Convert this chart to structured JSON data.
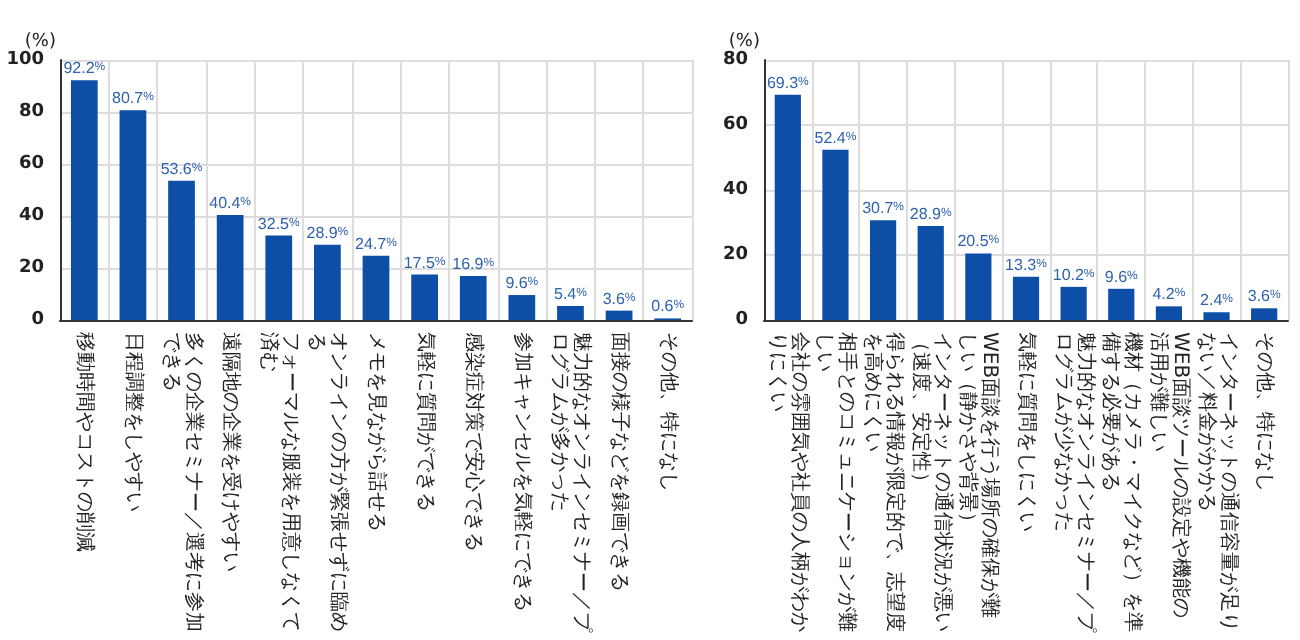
{
  "chart_data": [
    {
      "type": "bar",
      "ylabel": "(%)",
      "categories": [
        "移動時間やコストの削減",
        "日程調整をしやすい",
        "多くの企業セミナー／選考に参加できる",
        "遠隔地の企業を受けやすい",
        "フォーマルな服装を用意しなくて済む",
        "オンラインの方が緊張せずに臨める",
        "メモを見ながら話せる",
        "気軽に質問ができる",
        "感染症対策で安心できる",
        "参加キャンセルを気軽にできる",
        "魅力的なオンラインセミナー／プログラムが多かった",
        "面接の様子などを録画できる",
        "その他、特になし"
      ],
      "values": [
        92.2,
        80.7,
        53.6,
        40.4,
        32.5,
        28.9,
        24.7,
        17.5,
        16.9,
        9.6,
        5.4,
        3.6,
        0.6
      ],
      "value_labels": [
        "92.2%",
        "80.7%",
        "53.6%",
        "40.4%",
        "32.5%",
        "28.9%",
        "24.7%",
        "17.5%",
        "16.9%",
        "9.6%",
        "5.4%",
        "3.6%",
        "0.6%"
      ],
      "color": "#0d4ea6",
      "ylim": [
        0,
        100
      ],
      "yticks": [
        0,
        20,
        40,
        60,
        80,
        100
      ],
      "grid": true
    },
    {
      "type": "bar",
      "ylabel": "(%)",
      "categories": [
        "会社の雰囲気や社員の人柄がわかりにくい",
        "相手とのコミュニケーションが難しい",
        "得られる情報が限定的で、志望度を高めにくい",
        "インターネットの通信状況が悪い（速度、安定性）",
        "WEB面談を行う場所の確保が難しい（静かさや背景）",
        "気軽に質問をしにくい",
        "魅力的なオンラインセミナー／プログラムが少なかった",
        "機材（カメラ・マイクなど）を準備する必要がある",
        "WEB面談ツールの設定や機能の活用が難しい",
        "インターネットの通信容量が足りない／料金がかかる",
        "その他、特になし"
      ],
      "values": [
        69.3,
        52.4,
        30.7,
        28.9,
        20.5,
        13.3,
        10.2,
        9.6,
        4.2,
        2.4,
        3.6
      ],
      "value_labels": [
        "69.3%",
        "52.4%",
        "30.7%",
        "28.9%",
        "20.5%",
        "13.3%",
        "10.2%",
        "9.6%",
        "4.2%",
        "2.4%",
        "3.6%"
      ],
      "color": "#0d4ea6",
      "ylim": [
        0,
        80
      ],
      "yticks": [
        0,
        20,
        40,
        60,
        80
      ],
      "grid": true
    }
  ]
}
